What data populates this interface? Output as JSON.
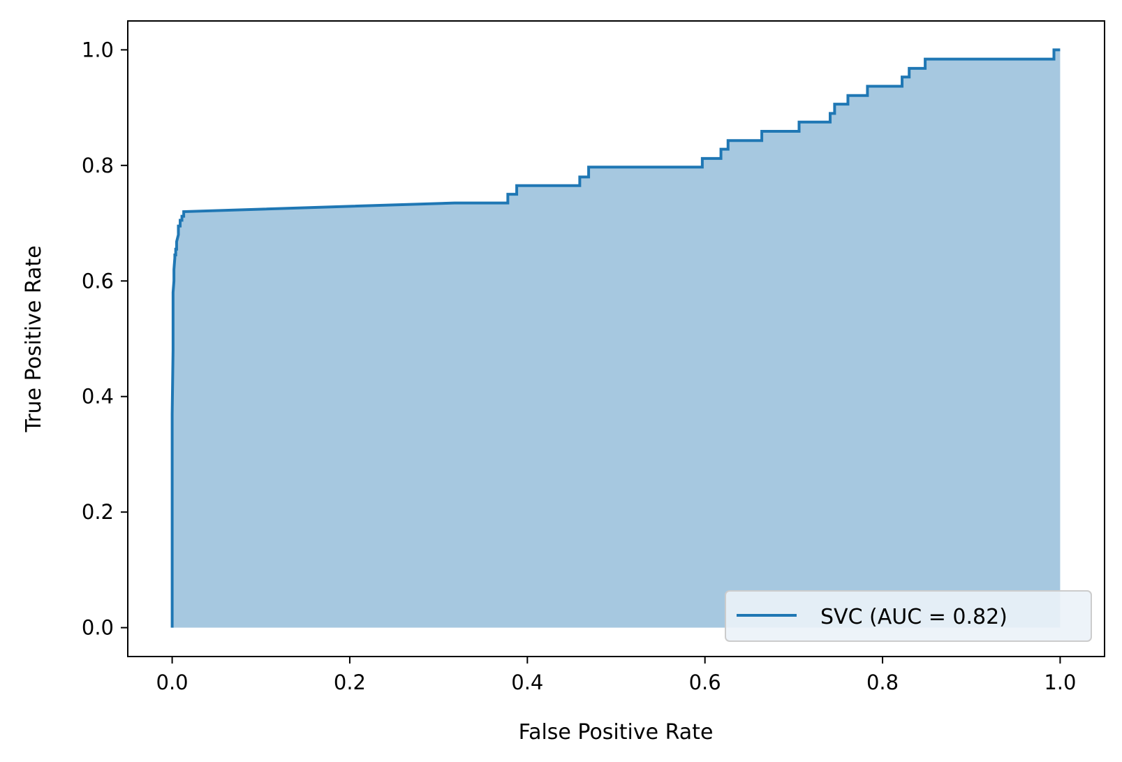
{
  "colors": {
    "line": "#1f77b4",
    "fill": "#a6c8e0",
    "axes": "#000000",
    "background": "#ffffff",
    "legend_background": "#ebf2f8",
    "legend_border": "#cccccc"
  },
  "chart_data": {
    "type": "area",
    "title": "",
    "xlabel": "False Positive Rate",
    "ylabel": "True Positive Rate",
    "xlim": [
      -0.05,
      1.05
    ],
    "ylim": [
      -0.05,
      1.05
    ],
    "grid": false,
    "legend_placement": "lower-right",
    "x_ticks": [
      0.0,
      0.2,
      0.4,
      0.6,
      0.8,
      1.0
    ],
    "y_ticks": [
      0.0,
      0.2,
      0.4,
      0.6,
      0.8,
      1.0
    ],
    "x_tick_labels": [
      "0.0",
      "0.2",
      "0.4",
      "0.6",
      "0.8",
      "1.0"
    ],
    "y_tick_labels": [
      "0.0",
      "0.2",
      "0.4",
      "0.6",
      "0.8",
      "1.0"
    ],
    "series": [
      {
        "name": "SVC (AUC = 0.82)",
        "x": [
          0.0,
          0.0,
          0.0,
          0.001,
          0.001,
          0.002,
          0.002,
          0.003,
          0.003,
          0.004,
          0.004,
          0.005,
          0.005,
          0.007,
          0.007,
          0.009,
          0.009,
          0.011,
          0.011,
          0.013,
          0.013,
          0.318,
          0.378,
          0.378,
          0.388,
          0.388,
          0.459,
          0.459,
          0.469,
          0.469,
          0.597,
          0.597,
          0.618,
          0.618,
          0.626,
          0.626,
          0.664,
          0.664,
          0.706,
          0.706,
          0.741,
          0.741,
          0.746,
          0.746,
          0.761,
          0.761,
          0.783,
          0.783,
          0.822,
          0.822,
          0.83,
          0.83,
          0.848,
          0.848,
          0.993,
          0.993,
          1.0
        ],
        "y": [
          0.0,
          0.23,
          0.37,
          0.48,
          0.58,
          0.6,
          0.62,
          0.64,
          0.645,
          0.645,
          0.655,
          0.655,
          0.668,
          0.68,
          0.695,
          0.695,
          0.705,
          0.705,
          0.712,
          0.712,
          0.72,
          0.735,
          0.735,
          0.75,
          0.75,
          0.765,
          0.765,
          0.78,
          0.78,
          0.797,
          0.797,
          0.812,
          0.812,
          0.828,
          0.828,
          0.843,
          0.843,
          0.859,
          0.859,
          0.875,
          0.875,
          0.89,
          0.89,
          0.906,
          0.906,
          0.921,
          0.921,
          0.937,
          0.937,
          0.953,
          0.953,
          0.968,
          0.968,
          0.984,
          0.984,
          1.0,
          1.0
        ]
      }
    ]
  }
}
